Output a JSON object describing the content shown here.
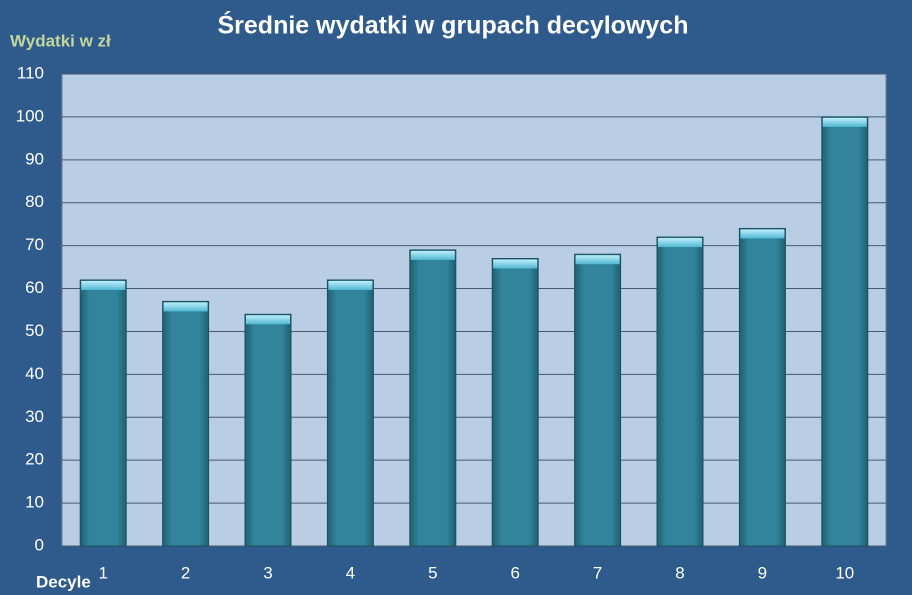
{
  "chart_data": {
    "type": "bar",
    "title": "Średnie wydatki w grupach decylowych",
    "y_label": "Wydatki w zł",
    "x_label": "Decyle",
    "categories": [
      "1",
      "2",
      "3",
      "4",
      "5",
      "6",
      "7",
      "8",
      "9",
      "10"
    ],
    "values": [
      62,
      57,
      54,
      62,
      69,
      67,
      68,
      72,
      74,
      100
    ],
    "color": "#31849b",
    "ylim": [
      0,
      110
    ],
    "yticks": [
      0,
      10,
      20,
      30,
      40,
      50,
      60,
      70,
      80,
      90,
      100,
      110
    ],
    "grid": true
  }
}
